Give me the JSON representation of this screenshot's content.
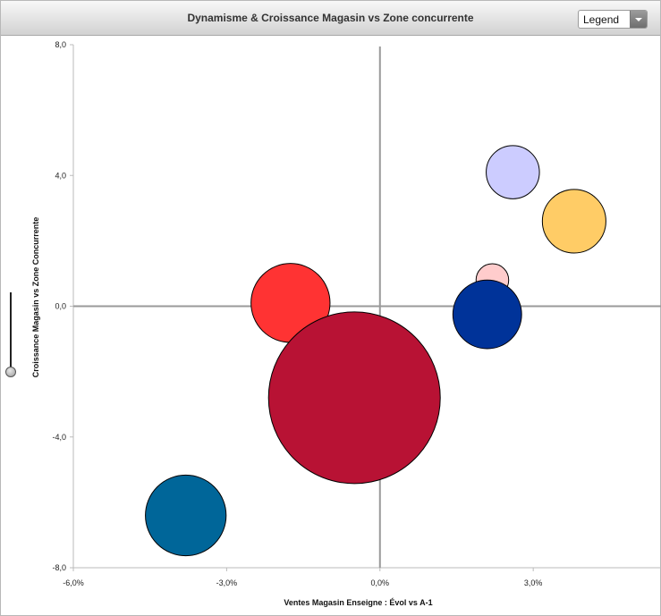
{
  "window": {
    "title": "Dynamisme & Croissance Magasin vs Zone concurrente",
    "legend_button_label": "Legend"
  },
  "zoom": {
    "level": 1.0
  },
  "chart_data": {
    "type": "bubble",
    "title": "Dynamisme & Croissance Magasin vs Zone concurrente",
    "xlabel": "Ventes Magasin Enseigne : Évol vs A-1",
    "ylabel": "Croissance Magasin vs Zone Concurrente",
    "xlim": [
      -6.0,
      5.5
    ],
    "ylim": [
      -8.0,
      8.0
    ],
    "x_ticks": [
      {
        "value": -6.0,
        "label": "-6,0%"
      },
      {
        "value": -3.0,
        "label": "-3,0%"
      },
      {
        "value": 0.0,
        "label": "0,0%"
      },
      {
        "value": 3.0,
        "label": "3,0%"
      }
    ],
    "y_ticks": [
      {
        "value": 8.0,
        "label": "8,0"
      },
      {
        "value": 4.0,
        "label": "4,0"
      },
      {
        "value": 0.0,
        "label": "0,0"
      },
      {
        "value": -4.0,
        "label": "-4,0"
      },
      {
        "value": -8.0,
        "label": "-8,0"
      }
    ],
    "quadrant_lines": {
      "x": 0.0,
      "y": 0.0
    },
    "grid": false,
    "legend": "hidden",
    "points": [
      {
        "x": 2.6,
        "y": 4.1,
        "size": 0.31,
        "color": "#ccccff"
      },
      {
        "x": 3.8,
        "y": 2.6,
        "size": 0.37,
        "color": "#ffcc66"
      },
      {
        "x": 2.2,
        "y": 0.8,
        "size": 0.19,
        "color": "#ffcccc"
      },
      {
        "x": -1.75,
        "y": 0.1,
        "size": 0.46,
        "color": "#ff3333"
      },
      {
        "x": 2.1,
        "y": -0.25,
        "size": 0.4,
        "color": "#003399"
      },
      {
        "x": -0.5,
        "y": -2.8,
        "size": 1.0,
        "color": "#b81234"
      },
      {
        "x": -3.8,
        "y": -6.4,
        "size": 0.47,
        "color": "#006699"
      }
    ]
  }
}
